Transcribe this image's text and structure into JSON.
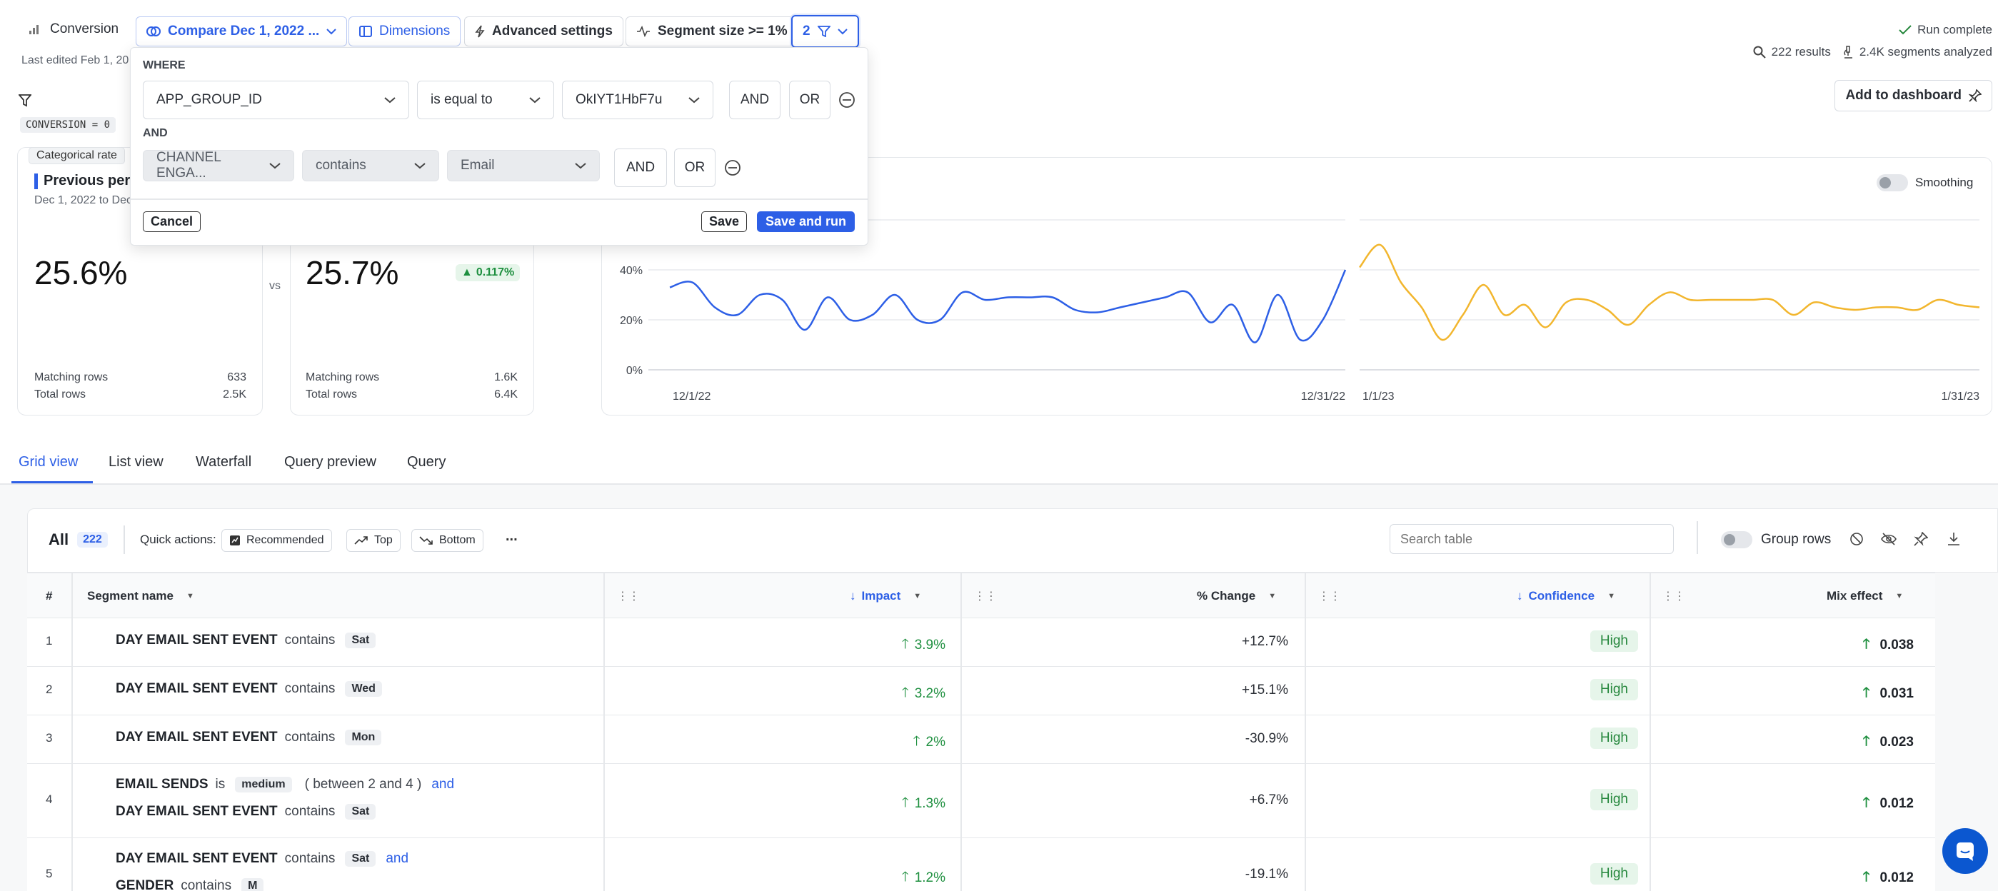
{
  "toolbar": {
    "conversion": "Conversion",
    "compare": "Compare Dec 1, 2022 ...",
    "dimensions": "Dimensions",
    "advanced": "Advanced settings",
    "segment_size": "Segment size >= 1%",
    "filter_count": "2",
    "last_edited": "Last edited Feb 1, 20",
    "run_complete": "Run complete",
    "results": "222 results",
    "segments_analyzed": "2.4K segments analyzed",
    "add_dashboard": "Add to dashboard"
  },
  "filter_chip": "CONVERSION = 0",
  "filter_popup": {
    "where": "WHERE",
    "and_label": "AND",
    "row1": {
      "field": "APP_GROUP_ID",
      "op": "is equal to",
      "value": "OkIYT1HbF7u",
      "and": "AND",
      "or": "OR"
    },
    "row2": {
      "field": "CHANNEL ENGA...",
      "op": "contains",
      "value": "Email",
      "and": "AND",
      "or": "OR"
    },
    "cancel": "Cancel",
    "save": "Save",
    "save_run": "Save and run"
  },
  "cards": {
    "categorical_rate": "Categorical rate",
    "prev_title": "Previous perio",
    "prev_dates": "Dec 1, 2022 to Dec",
    "prev_value": "25.6%",
    "vs": "vs",
    "curr_value": "25.7%",
    "curr_delta": "0.117%",
    "prev_matching_label": "Matching rows",
    "prev_matching": "633",
    "prev_total_label": "Total rows",
    "prev_total": "2.5K",
    "curr_matching_label": "Matching rows",
    "curr_matching": "1.6K",
    "curr_total_label": "Total rows",
    "curr_total": "6.4K"
  },
  "chart_data": {
    "type": "line",
    "smoothing_label": "Smoothing",
    "y_ticks": [
      "40%",
      "20%",
      "0%"
    ],
    "ylim": [
      0,
      60
    ],
    "x_ticks_left": [
      "12/1/22",
      "12/31/22"
    ],
    "x_ticks_right": [
      "1/1/23",
      "1/31/23"
    ],
    "colors": {
      "previous": "#2d5fe6",
      "current": "#f2b62e"
    },
    "series": [
      {
        "x": [
          "12/1/22",
          "12/2/22",
          "12/3/22",
          "12/4/22",
          "12/5/22",
          "12/6/22",
          "12/7/22",
          "12/8/22",
          "12/9/22",
          "12/10/22",
          "12/11/22",
          "12/12/22",
          "12/13/22",
          "12/14/22",
          "12/15/22",
          "12/16/22",
          "12/17/22",
          "12/18/22",
          "12/19/22",
          "12/20/22",
          "12/21/22",
          "12/22/22",
          "12/23/22",
          "12/24/22",
          "12/25/22",
          "12/26/22",
          "12/27/22",
          "12/28/22",
          "12/29/22",
          "12/30/22",
          "12/31/22"
        ],
        "values": [
          33,
          35,
          25,
          22,
          30,
          28,
          16,
          29,
          20,
          22,
          30,
          20,
          20,
          31,
          28,
          29,
          29,
          29,
          24,
          23,
          25,
          27,
          29,
          31,
          19,
          26,
          11,
          30,
          12,
          20,
          40
        ]
      },
      {
        "x": [
          "1/1/23",
          "1/2/23",
          "1/3/23",
          "1/4/23",
          "1/5/23",
          "1/6/23",
          "1/7/23",
          "1/8/23",
          "1/9/23",
          "1/10/23",
          "1/11/23",
          "1/12/23",
          "1/13/23",
          "1/14/23",
          "1/15/23",
          "1/16/23",
          "1/17/23",
          "1/18/23",
          "1/19/23",
          "1/20/23",
          "1/21/23",
          "1/22/23",
          "1/23/23",
          "1/24/23",
          "1/25/23",
          "1/26/23",
          "1/27/23",
          "1/28/23",
          "1/29/23",
          "1/30/23",
          "1/31/23"
        ],
        "values": [
          41,
          50,
          35,
          25,
          12,
          22,
          34,
          22,
          26,
          17,
          27,
          28,
          24,
          18,
          26,
          31,
          28,
          28,
          28,
          28,
          28,
          22,
          27,
          25,
          24,
          25,
          25,
          24,
          28,
          26,
          25
        ]
      }
    ]
  },
  "tabs": [
    "Grid view",
    "List view",
    "Waterfall",
    "Query preview",
    "Query"
  ],
  "table_toolbar": {
    "all": "All",
    "count": "222",
    "quick_actions": "Quick actions:",
    "recommended": "Recommended",
    "top": "Top",
    "bottom": "Bottom",
    "more": "...",
    "search_placeholder": "Search table",
    "group_rows": "Group rows"
  },
  "columns": [
    "#",
    "Segment name",
    "Impact",
    "% Change",
    "Confidence",
    "Mix effect"
  ],
  "rows": [
    {
      "n": "1",
      "segs": [
        {
          "b": "DAY EMAIL SENT EVENT",
          "t": "contains",
          "p": "Sat"
        }
      ],
      "impact": "3.9%",
      "change": "+12.7%",
      "conf": "High",
      "mix": "0.038"
    },
    {
      "n": "2",
      "segs": [
        {
          "b": "DAY EMAIL SENT EVENT",
          "t": "contains",
          "p": "Wed"
        }
      ],
      "impact": "3.2%",
      "change": "+15.1%",
      "conf": "High",
      "mix": "0.031"
    },
    {
      "n": "3",
      "segs": [
        {
          "b": "DAY EMAIL SENT EVENT",
          "t": "contains",
          "p": "Mon"
        }
      ],
      "impact": "2%",
      "change": "-30.9%",
      "conf": "High",
      "mix": "0.023"
    },
    {
      "n": "4",
      "segs": [
        {
          "b": "EMAIL SENDS",
          "t": "is",
          "p": "medium",
          "extra": "( between 2 and 4 )",
          "and": "and"
        },
        {
          "b": "DAY EMAIL SENT EVENT",
          "t": "contains",
          "p": "Sat"
        }
      ],
      "impact": "1.3%",
      "change": "+6.7%",
      "conf": "High",
      "mix": "0.012"
    },
    {
      "n": "5",
      "segs": [
        {
          "b": "DAY EMAIL SENT EVENT",
          "t": "contains",
          "p": "Sat",
          "and": "and"
        },
        {
          "b": "GENDER",
          "t": "contains",
          "p": "M"
        }
      ],
      "impact": "1.2%",
      "change": "-19.1%",
      "conf": "High",
      "mix": "0.012"
    }
  ]
}
